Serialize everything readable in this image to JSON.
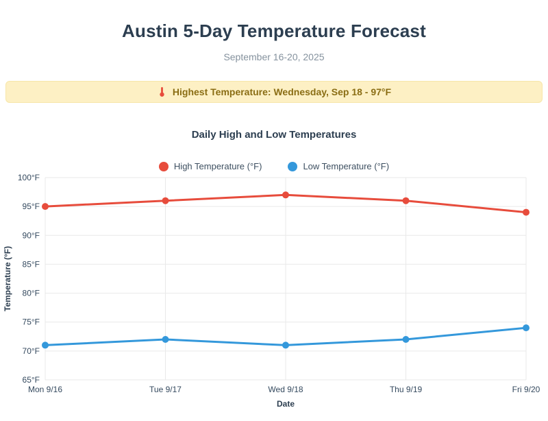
{
  "header": {
    "title": "Austin 5-Day Temperature Forecast",
    "subtitle": "September 16-20, 2025"
  },
  "banner": {
    "icon_name": "thermometer-icon",
    "icon_glyph": "🌡️",
    "message": "Highest Temperature: Wednesday, Sep 18 - 97°F",
    "background_color": "#fdf0c4",
    "text_color": "#8a6d14"
  },
  "chart": {
    "title": "Daily High and Low Temperatures"
  },
  "chart_data": {
    "type": "line",
    "title": "Daily High and Low Temperatures",
    "categories": [
      "Mon 9/16",
      "Tue 9/17",
      "Wed 9/18",
      "Thu 9/19",
      "Fri 9/20"
    ],
    "series": [
      {
        "name": "High Temperature (°F)",
        "color": "#e74c3c",
        "values": [
          95,
          96,
          97,
          96,
          94
        ]
      },
      {
        "name": "Low Temperature (°F)",
        "color": "#3498db",
        "values": [
          71,
          72,
          71,
          72,
          74
        ]
      }
    ],
    "xlabel": "Date",
    "ylabel": "Temperature (°F)",
    "ylim": [
      65,
      100
    ],
    "ytick_step": 5,
    "ytick_suffix": "°F",
    "grid": true,
    "legend_position": "top"
  },
  "colors": {
    "title": "#2c3e50",
    "subtitle": "#85929e",
    "grid": "#e9e9e9",
    "tick_label": "#34495e"
  }
}
